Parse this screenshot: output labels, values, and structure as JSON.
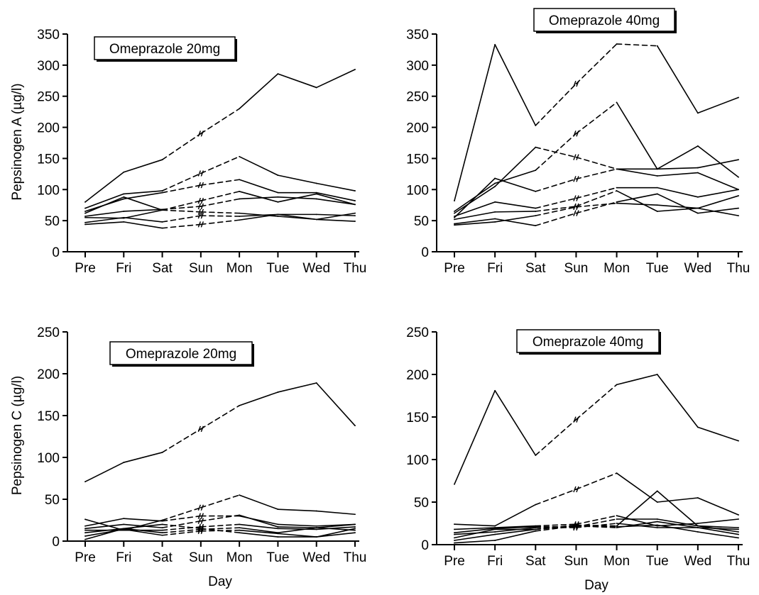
{
  "chart_data": [
    {
      "type": "line",
      "title": "Omeprazole 20mg",
      "ylabel": "Pepsinogen A (µg/l)",
      "xlabel": "",
      "categories": [
        "Pre",
        "Fri",
        "Sat",
        "Sun",
        "Mon",
        "Tue",
        "Wed",
        "Thu"
      ],
      "yticks": [
        0,
        50,
        100,
        150,
        200,
        250,
        300,
        350
      ],
      "ylim": [
        0,
        350
      ],
      "grid": false,
      "series": [
        {
          "values": [
            80,
            128,
            148,
            190,
            230,
            286,
            264,
            293
          ],
          "dashed": [
            2,
            3
          ]
        },
        {
          "values": [
            70,
            93,
            98,
            126,
            153,
            123,
            110,
            98
          ],
          "dashed": [
            2,
            3
          ]
        },
        {
          "values": [
            65,
            85,
            95,
            107,
            116,
            95,
            95,
            82
          ],
          "dashed": [
            2,
            3
          ]
        },
        {
          "values": [
            62,
            88,
            67,
            82,
            97,
            80,
            93,
            76
          ],
          "dashed": [
            2,
            3
          ]
        },
        {
          "values": [
            57,
            65,
            68,
            73,
            85,
            88,
            85,
            76
          ],
          "dashed": [
            2,
            3
          ]
        },
        {
          "values": [
            55,
            54,
            67,
            64,
            62,
            57,
            52,
            62
          ],
          "dashed": [
            2,
            3
          ]
        },
        {
          "values": [
            47,
            55,
            48,
            58,
            57,
            60,
            60,
            58
          ],
          "dashed": [
            2,
            3
          ]
        },
        {
          "values": [
            44,
            48,
            38,
            44,
            51,
            60,
            52,
            49
          ],
          "dashed": [
            2,
            3
          ]
        }
      ]
    },
    {
      "type": "line",
      "title": "Omeprazole 40mg",
      "ylabel": "",
      "xlabel": "",
      "categories": [
        "Pre",
        "Fri",
        "Sat",
        "Sun",
        "Mon",
        "Tue",
        "Wed",
        "Thu"
      ],
      "yticks": [
        0,
        50,
        100,
        150,
        200,
        250,
        300,
        350
      ],
      "ylim": [
        0,
        350
      ],
      "grid": false,
      "series": [
        {
          "values": [
            82,
            333,
            203,
            270,
            334,
            331,
            223,
            248
          ],
          "dashed": [
            2,
            3,
            4
          ]
        },
        {
          "values": [
            65,
            110,
            131,
            190,
            240,
            133,
            170,
            120
          ],
          "dashed": [
            2,
            3
          ]
        },
        {
          "values": [
            62,
            105,
            168,
            152,
            133,
            133,
            135,
            148
          ],
          "dashed": [
            2,
            3
          ]
        },
        {
          "values": [
            55,
            118,
            97,
            117,
            133,
            122,
            127,
            100
          ],
          "dashed": [
            2,
            3
          ]
        },
        {
          "values": [
            57,
            80,
            70,
            86,
            103,
            103,
            88,
            100
          ],
          "dashed": [
            2,
            3
          ]
        },
        {
          "values": [
            52,
            64,
            65,
            73,
            98,
            65,
            70,
            90
          ],
          "dashed": [
            2,
            3
          ]
        },
        {
          "values": [
            45,
            53,
            42,
            62,
            80,
            93,
            62,
            70
          ],
          "dashed": [
            2,
            3
          ]
        },
        {
          "values": [
            43,
            48,
            58,
            72,
            78,
            75,
            70,
            58
          ],
          "dashed": [
            2,
            3
          ]
        }
      ]
    },
    {
      "type": "line",
      "title": "Omeprazole 20mg",
      "ylabel": "Pepsinogen C (µg/l)",
      "xlabel": "Day",
      "categories": [
        "Pre",
        "Fri",
        "Sat",
        "Sun",
        "Mon",
        "Tue",
        "Wed",
        "Thu"
      ],
      "yticks": [
        0,
        50,
        100,
        150,
        200,
        250
      ],
      "ylim": [
        0,
        250
      ],
      "grid": false,
      "series": [
        {
          "values": [
            71,
            94,
            106,
            134,
            162,
            178,
            189,
            138
          ],
          "dashed": [
            2,
            3
          ]
        },
        {
          "values": [
            26,
            13,
            25,
            40,
            55,
            38,
            36,
            32
          ],
          "dashed": [
            2,
            3
          ]
        },
        {
          "values": [
            18,
            27,
            24,
            30,
            30,
            20,
            18,
            20
          ],
          "dashed": [
            2,
            3
          ]
        },
        {
          "values": [
            15,
            20,
            16,
            24,
            31,
            17,
            16,
            20
          ],
          "dashed": [
            2,
            3
          ]
        },
        {
          "values": [
            13,
            13,
            13,
            17,
            20,
            15,
            14,
            17
          ],
          "dashed": [
            2,
            3
          ]
        },
        {
          "values": [
            10,
            15,
            10,
            14,
            16,
            10,
            16,
            13
          ],
          "dashed": [
            2,
            3
          ]
        },
        {
          "values": [
            6,
            14,
            7,
            12,
            13,
            9,
            5,
            15
          ],
          "dashed": [
            2,
            3
          ]
        },
        {
          "values": [
            2,
            15,
            20,
            15,
            10,
            5,
            5,
            10
          ],
          "dashed": [
            2,
            3
          ]
        }
      ]
    },
    {
      "type": "line",
      "title": "Omeprazole 40mg",
      "ylabel": "",
      "xlabel": "Day",
      "categories": [
        "Pre",
        "Fri",
        "Sat",
        "Sun",
        "Mon",
        "Tue",
        "Wed",
        "Thu"
      ],
      "yticks": [
        0,
        50,
        100,
        150,
        200,
        250
      ],
      "ylim": [
        0,
        250
      ],
      "grid": false,
      "series": [
        {
          "values": [
            71,
            181,
            105,
            147,
            188,
            200,
            138,
            122
          ],
          "dashed": [
            2,
            3
          ]
        },
        {
          "values": [
            24,
            22,
            47,
            65,
            84,
            50,
            55,
            35
          ],
          "dashed": [
            2,
            3
          ]
        },
        {
          "values": [
            18,
            20,
            22,
            24,
            34,
            22,
            25,
            30
          ],
          "dashed": [
            2,
            3
          ]
        },
        {
          "values": [
            14,
            19,
            21,
            21,
            30,
            30,
            22,
            20
          ],
          "dashed": [
            2,
            3
          ]
        },
        {
          "values": [
            12,
            15,
            20,
            20,
            25,
            20,
            20,
            18
          ],
          "dashed": [
            2,
            3
          ]
        },
        {
          "values": [
            8,
            18,
            18,
            23,
            22,
            63,
            22,
            15
          ],
          "dashed": [
            2,
            3
          ]
        },
        {
          "values": [
            5,
            12,
            18,
            22,
            20,
            27,
            20,
            12
          ],
          "dashed": [
            2,
            3
          ]
        },
        {
          "values": [
            2,
            5,
            16,
            22,
            21,
            23,
            15,
            8
          ],
          "dashed": [
            2,
            3
          ]
        }
      ]
    }
  ]
}
